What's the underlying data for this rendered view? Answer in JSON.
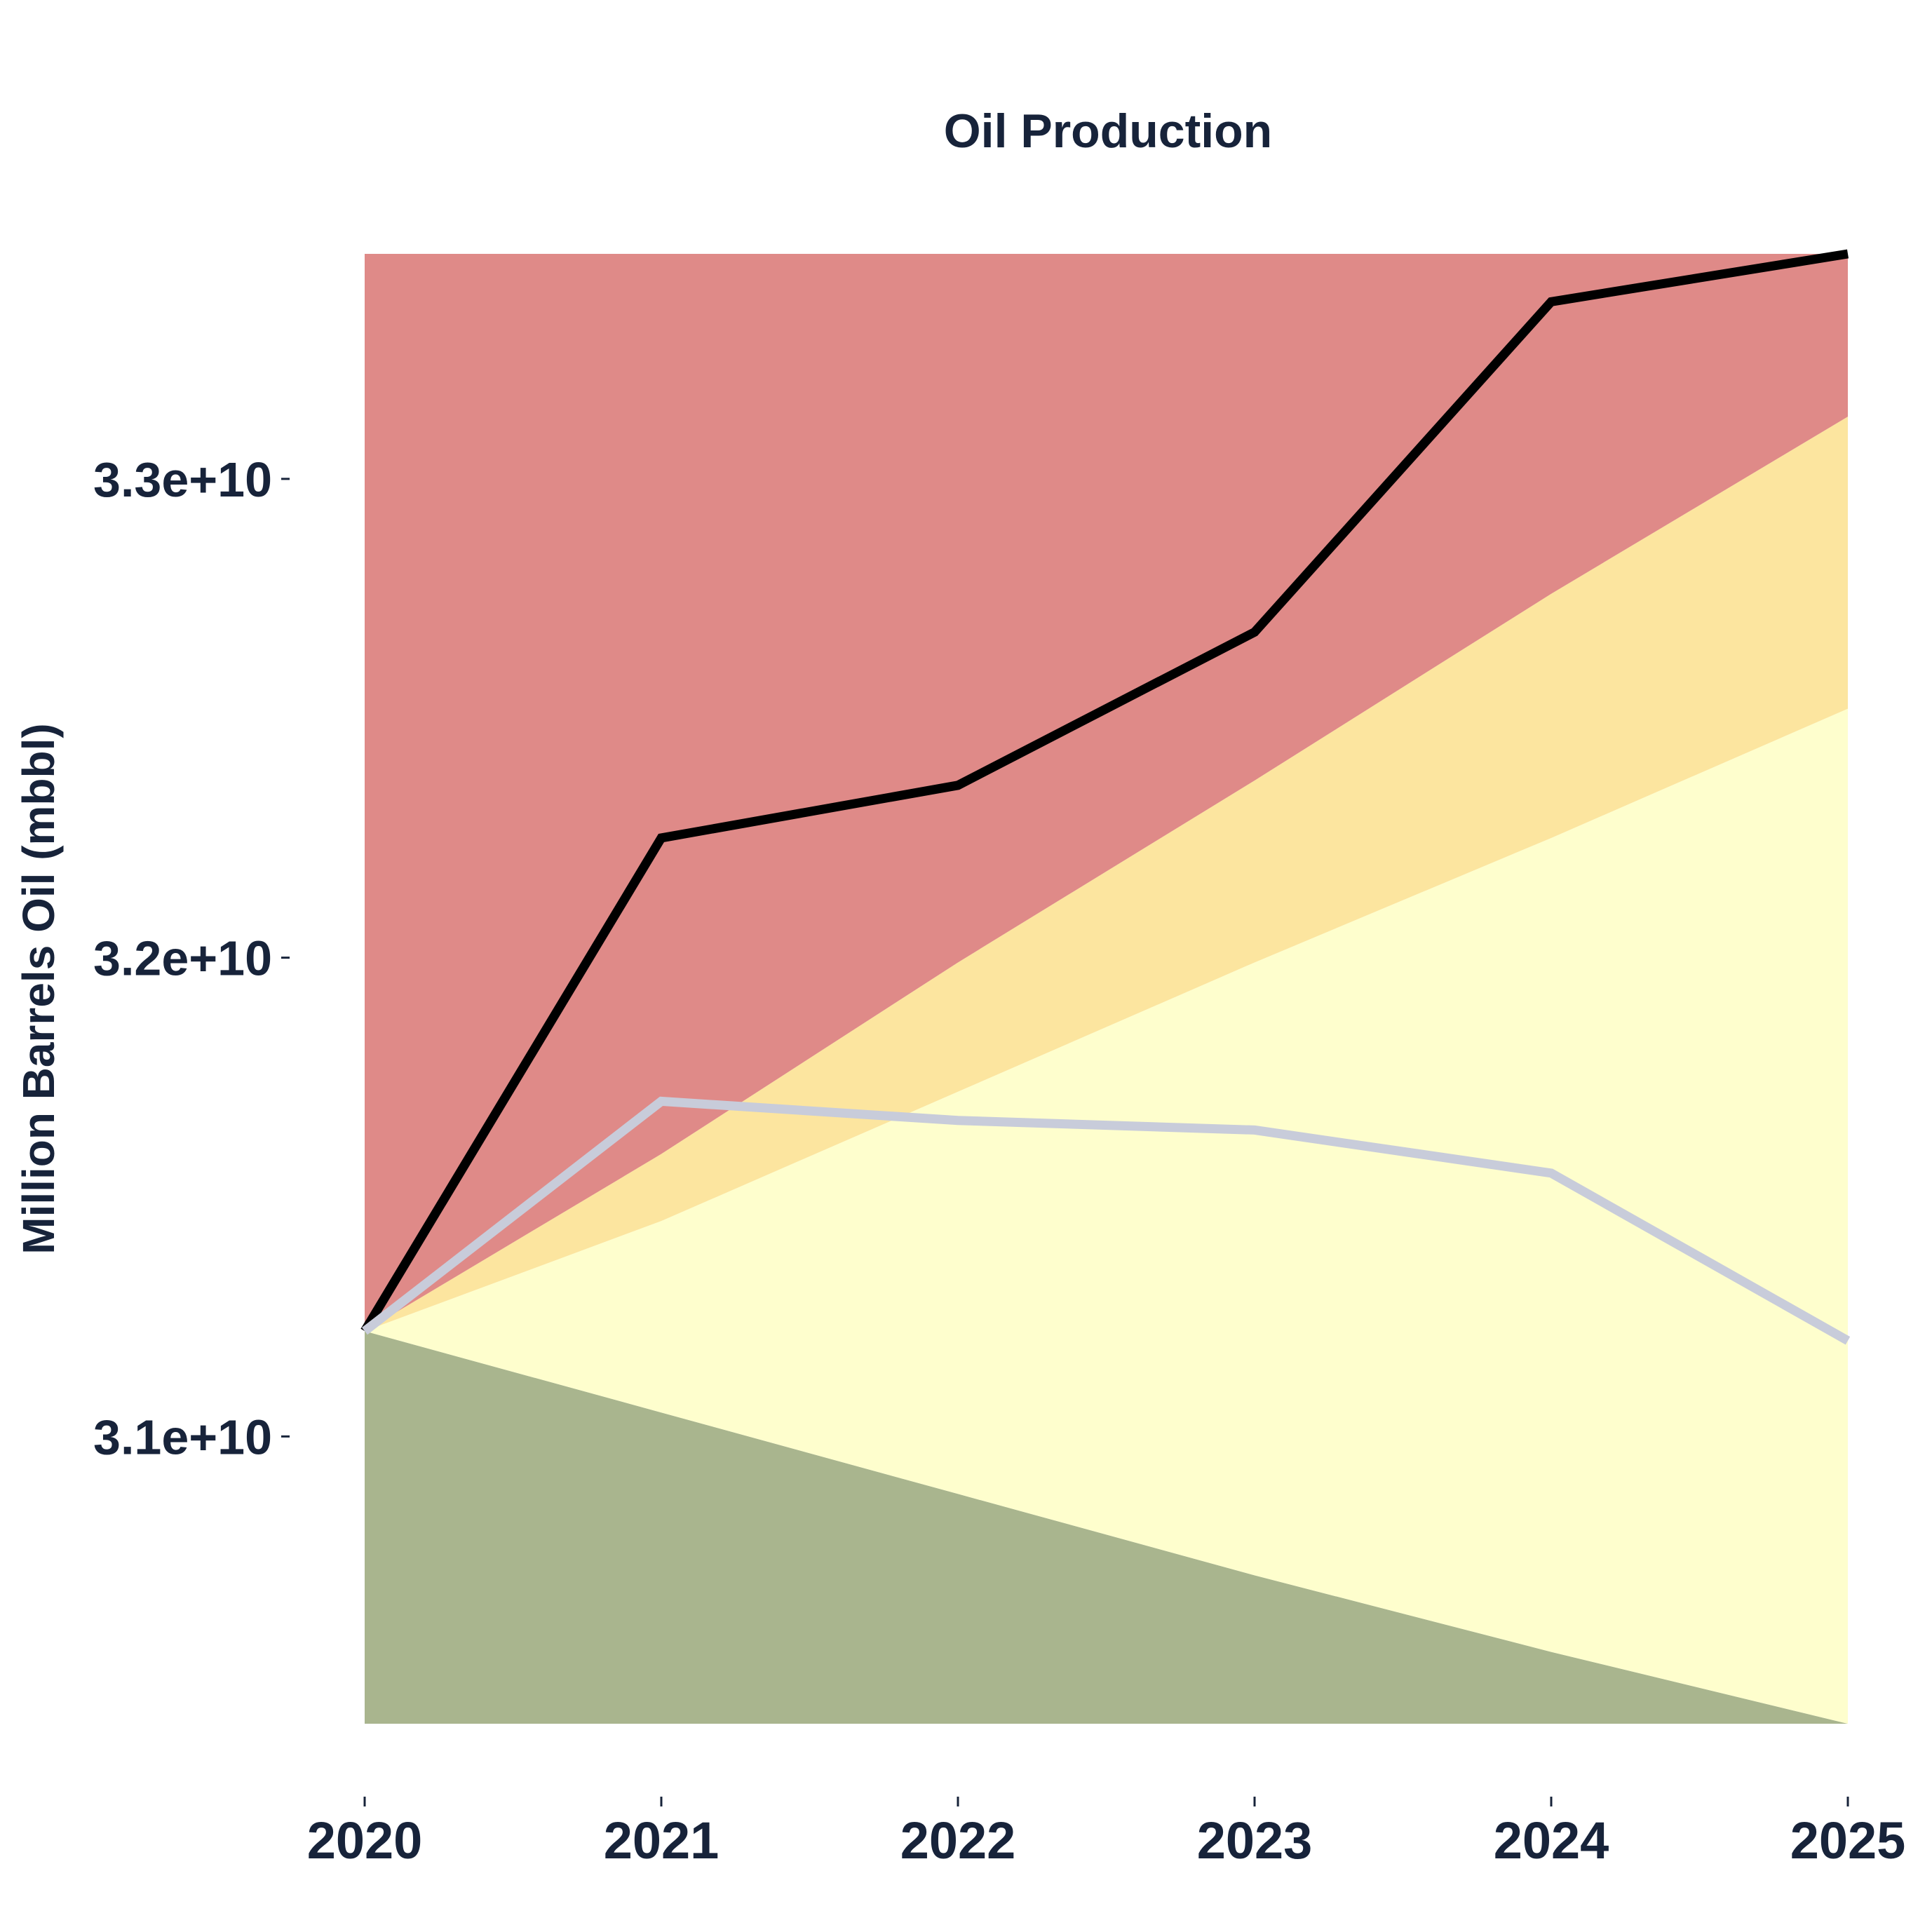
{
  "chart_data": {
    "type": "area",
    "title": "Oil Production",
    "xlabel": "",
    "ylabel": "Million Barrels Oil (mbbl)",
    "x": [
      2020,
      2021,
      2022,
      2023,
      2024,
      2025
    ],
    "xticks": [
      "2020",
      "2021",
      "2022",
      "2023",
      "2024",
      "2025"
    ],
    "yticks": [
      {
        "value": 31000000000,
        "label": "3.1e+10"
      },
      {
        "value": 32000000000,
        "label": "3.2e+10"
      },
      {
        "value": 33000000000,
        "label": "3.3e+10"
      }
    ],
    "xlim": [
      2020,
      2025
    ],
    "ylim": [
      30400000000,
      33470000000
    ],
    "grid": false,
    "bands": [
      {
        "color": "#a9b58e",
        "lower": [
          30400000000,
          30400000000,
          30400000000,
          30400000000,
          30400000000,
          30400000000
        ],
        "upper": [
          31220000000,
          31050000000,
          30880000000,
          30710000000,
          30550000000,
          30400000000
        ]
      },
      {
        "color": "#fefecd",
        "lower": [
          31220000000,
          31050000000,
          30880000000,
          30710000000,
          30550000000,
          30400000000
        ],
        "upper": [
          31220000000,
          31450000000,
          31720000000,
          31990000000,
          32250000000,
          32520000000
        ]
      },
      {
        "color": "#fce59f",
        "lower": [
          31220000000,
          31450000000,
          31720000000,
          31990000000,
          32250000000,
          32520000000
        ],
        "upper": [
          31220000000,
          31590000000,
          31990000000,
          32370000000,
          32760000000,
          33130000000
        ]
      },
      {
        "color": "#df8a88",
        "lower": [
          31220000000,
          31590000000,
          31990000000,
          32370000000,
          32760000000,
          33130000000
        ],
        "upper": [
          33470000000,
          33470000000,
          33470000000,
          33470000000,
          33470000000,
          33470000000
        ]
      }
    ],
    "series": [
      {
        "color": "#000000",
        "values": [
          31220000000,
          32250000000,
          32360000000,
          32680000000,
          33370000000,
          33470000000
        ]
      },
      {
        "color": "#c8ccda",
        "values": [
          31220000000,
          31700000000,
          31660000000,
          31640000000,
          31550000000,
          31200000000
        ]
      }
    ]
  }
}
